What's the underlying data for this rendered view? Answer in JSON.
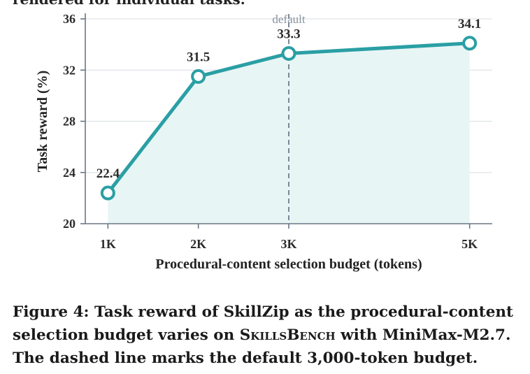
{
  "top_fragment": "rendered for individual tasks.",
  "chart_data": {
    "type": "line",
    "x": [
      1,
      2,
      3,
      5
    ],
    "x_tick_labels": [
      "1K",
      "2K",
      "3K",
      "5K"
    ],
    "values": [
      22.4,
      31.5,
      33.3,
      34.1
    ],
    "data_labels": [
      "22.4",
      "31.5",
      "33.3",
      "34.1"
    ],
    "xlabel": "Procedural-content selection budget (tokens)",
    "ylabel": "Task reward (%)",
    "xlim": [
      0.75,
      5.25
    ],
    "ylim": [
      20,
      36
    ],
    "y_ticks": [
      20,
      24,
      28,
      32,
      36
    ],
    "grid": "horizontal",
    "area_fill": true,
    "vline": {
      "x": 3,
      "label": "default",
      "style": "dashed"
    },
    "colors": {
      "line": "#2a9fa4",
      "area": "#e8f5f5",
      "vline": "#7d8896",
      "axis": "#6b7685"
    }
  },
  "caption": {
    "line1": "Figure 4: Task reward of SkillZip as the procedural-content",
    "line2_a": "selection budget varies on ",
    "line2_sc": "SkillsBench",
    "line2_b": " with MiniMax-M2.7.",
    "line3": "The dashed line marks the default 3,000-token budget."
  }
}
